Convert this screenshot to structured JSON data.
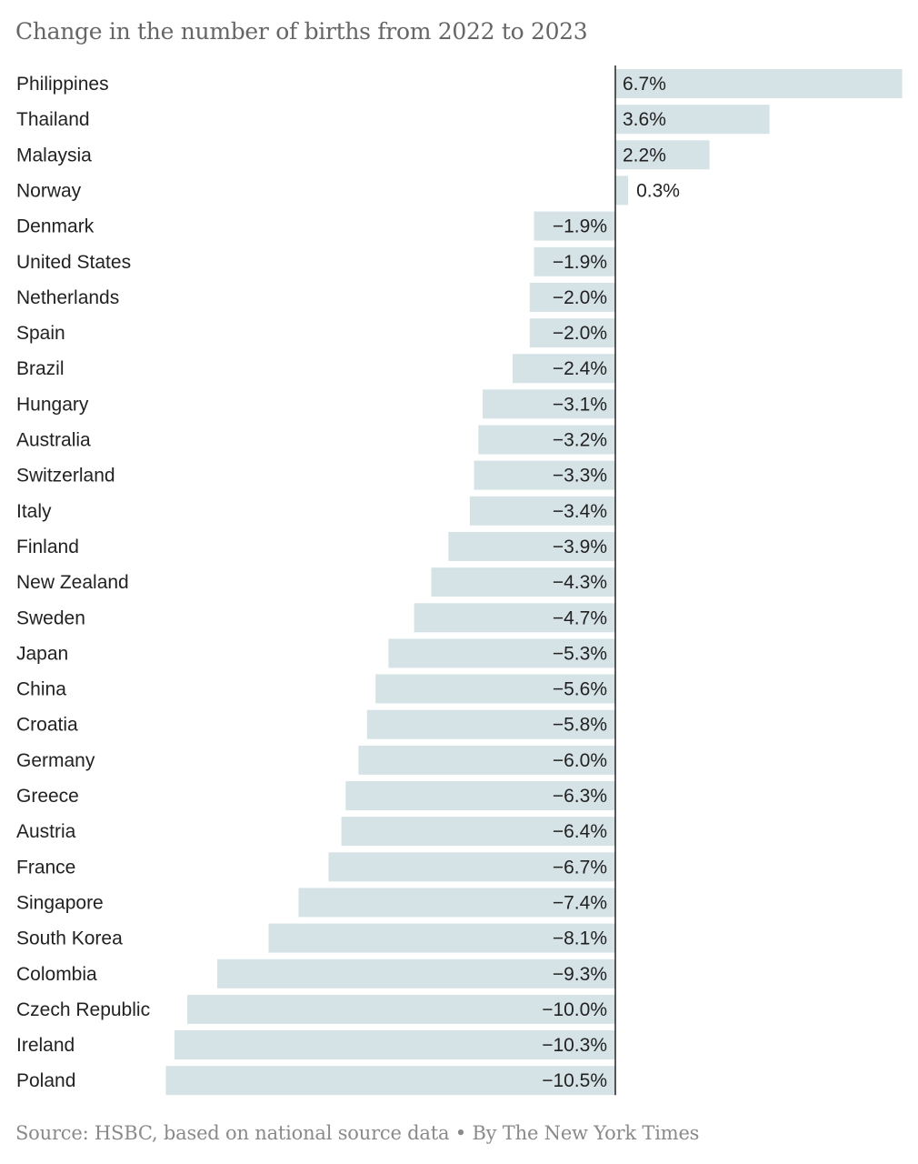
{
  "title": "Change in the number of births from 2022 to 2023",
  "footer": {
    "source": "Source:  HSBC, based on national source data • By The New York Times"
  },
  "colors": {
    "bar": "#d6e3e6",
    "axis": "#222222",
    "label": "#222222",
    "title": "#666666",
    "footer": "#8a8a8a"
  },
  "chart_data": {
    "type": "bar",
    "orientation": "horizontal",
    "title": "Change in the number of births from 2022 to 2023",
    "categories": [
      "Philippines",
      "Thailand",
      "Malaysia",
      "Norway",
      "Denmark",
      "United States",
      "Netherlands",
      "Spain",
      "Brazil",
      "Hungary",
      "Australia",
      "Switzerland",
      "Italy",
      "Finland",
      "New Zealand",
      "Sweden",
      "Japan",
      "China",
      "Croatia",
      "Germany",
      "Greece",
      "Austria",
      "France",
      "Singapore",
      "South Korea",
      "Colombia",
      "Czech Republic",
      "Ireland",
      "Poland"
    ],
    "values": [
      6.7,
      3.6,
      2.2,
      0.3,
      -1.9,
      -1.9,
      -2.0,
      -2.0,
      -2.4,
      -3.1,
      -3.2,
      -3.3,
      -3.4,
      -3.9,
      -4.3,
      -4.7,
      -5.3,
      -5.6,
      -5.8,
      -6.0,
      -6.3,
      -6.4,
      -6.7,
      -7.4,
      -8.1,
      -9.3,
      -10.0,
      -10.3,
      -10.5
    ],
    "value_labels": [
      "6.7%",
      "3.6%",
      "2.2%",
      "0.3%",
      "−1.9%",
      "−1.9%",
      "−2.0%",
      "−2.0%",
      "−2.4%",
      "−3.1%",
      "−3.2%",
      "−3.3%",
      "−3.4%",
      "−3.9%",
      "−4.3%",
      "−4.7%",
      "−5.3%",
      "−5.6%",
      "−5.8%",
      "−6.0%",
      "−6.3%",
      "−6.4%",
      "−6.7%",
      "−7.4%",
      "−8.1%",
      "−9.3%",
      "−10.0%",
      "−10.3%",
      "−10.5%"
    ],
    "xlim": [
      -10.5,
      6.7
    ],
    "grid": false,
    "legend": "none"
  }
}
